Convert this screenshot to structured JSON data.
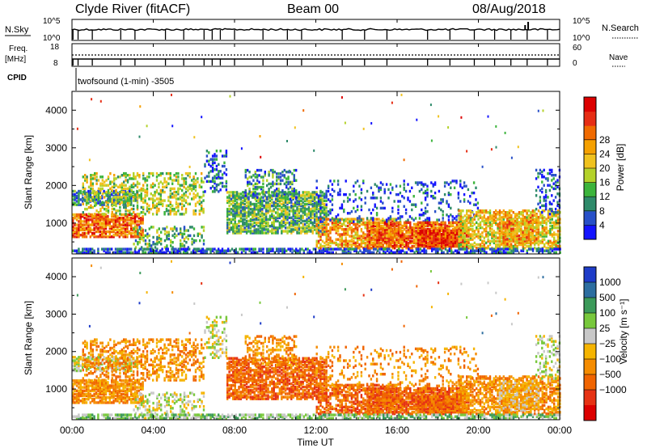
{
  "header": {
    "station": "Clyde River (fitACF)",
    "beam": "Beam 00",
    "date": "08/Aug/2018"
  },
  "top_panels": {
    "nsky_label": "N.Sky",
    "nsearch_label": "N.Search",
    "nsky_ticks": [
      "10^5",
      "10^0"
    ],
    "nsky_ticks_right": [
      "10^5",
      "10^0"
    ],
    "freq_label_1": "Freq.",
    "freq_label_2": "[MHz]",
    "freq_ticks": [
      "18",
      "8"
    ],
    "nave_label": "Nave",
    "nave_ticks": [
      "60",
      "0"
    ],
    "cpid_label": "CPID",
    "cpid_text": "twofsound (1-min) -3505"
  },
  "chart_data": [
    {
      "type": "heatmap",
      "panel": "power",
      "ylabel": "Slant Range [km]",
      "yticks": [
        "1000",
        "2000",
        "3000",
        "4000"
      ],
      "ylim": [
        180,
        4500
      ],
      "xlim_hours": [
        0,
        24
      ],
      "colorbar_label": "Power [dB]",
      "colorbar_ticks": [
        "4",
        "8",
        "12",
        "16",
        "20",
        "24",
        "28"
      ],
      "colorbar_colors": [
        "#1414ff",
        "#2850c8",
        "#2e8a6a",
        "#3cb43c",
        "#b4d22a",
        "#f0c21e",
        "#f5a000",
        "#f06a00",
        "#e62d14",
        "#dc0000"
      ]
    },
    {
      "type": "heatmap",
      "panel": "velocity",
      "ylabel": "Slant Range [km]",
      "yticks": [
        "1000",
        "2000",
        "3000",
        "4000"
      ],
      "ylim": [
        180,
        4500
      ],
      "xlim_hours": [
        0,
        24
      ],
      "colorbar_label": "Velocity [m s⁻¹]",
      "colorbar_ticks": [
        "1000",
        "500",
        "100",
        "25",
        "−25",
        "−100",
        "−500",
        "−1000"
      ],
      "colorbar_colors": [
        "#1e3cc8",
        "#2d6ea0",
        "#3c9a5a",
        "#78c83c",
        "#c8c8c8",
        "#f5b400",
        "#f58c00",
        "#f06400",
        "#e63214",
        "#dc0000"
      ]
    }
  ],
  "xaxis": {
    "ticks": [
      "00:00",
      "04:00",
      "08:00",
      "12:00",
      "16:00",
      "20:00",
      "00:00"
    ],
    "label": "Time UT"
  }
}
